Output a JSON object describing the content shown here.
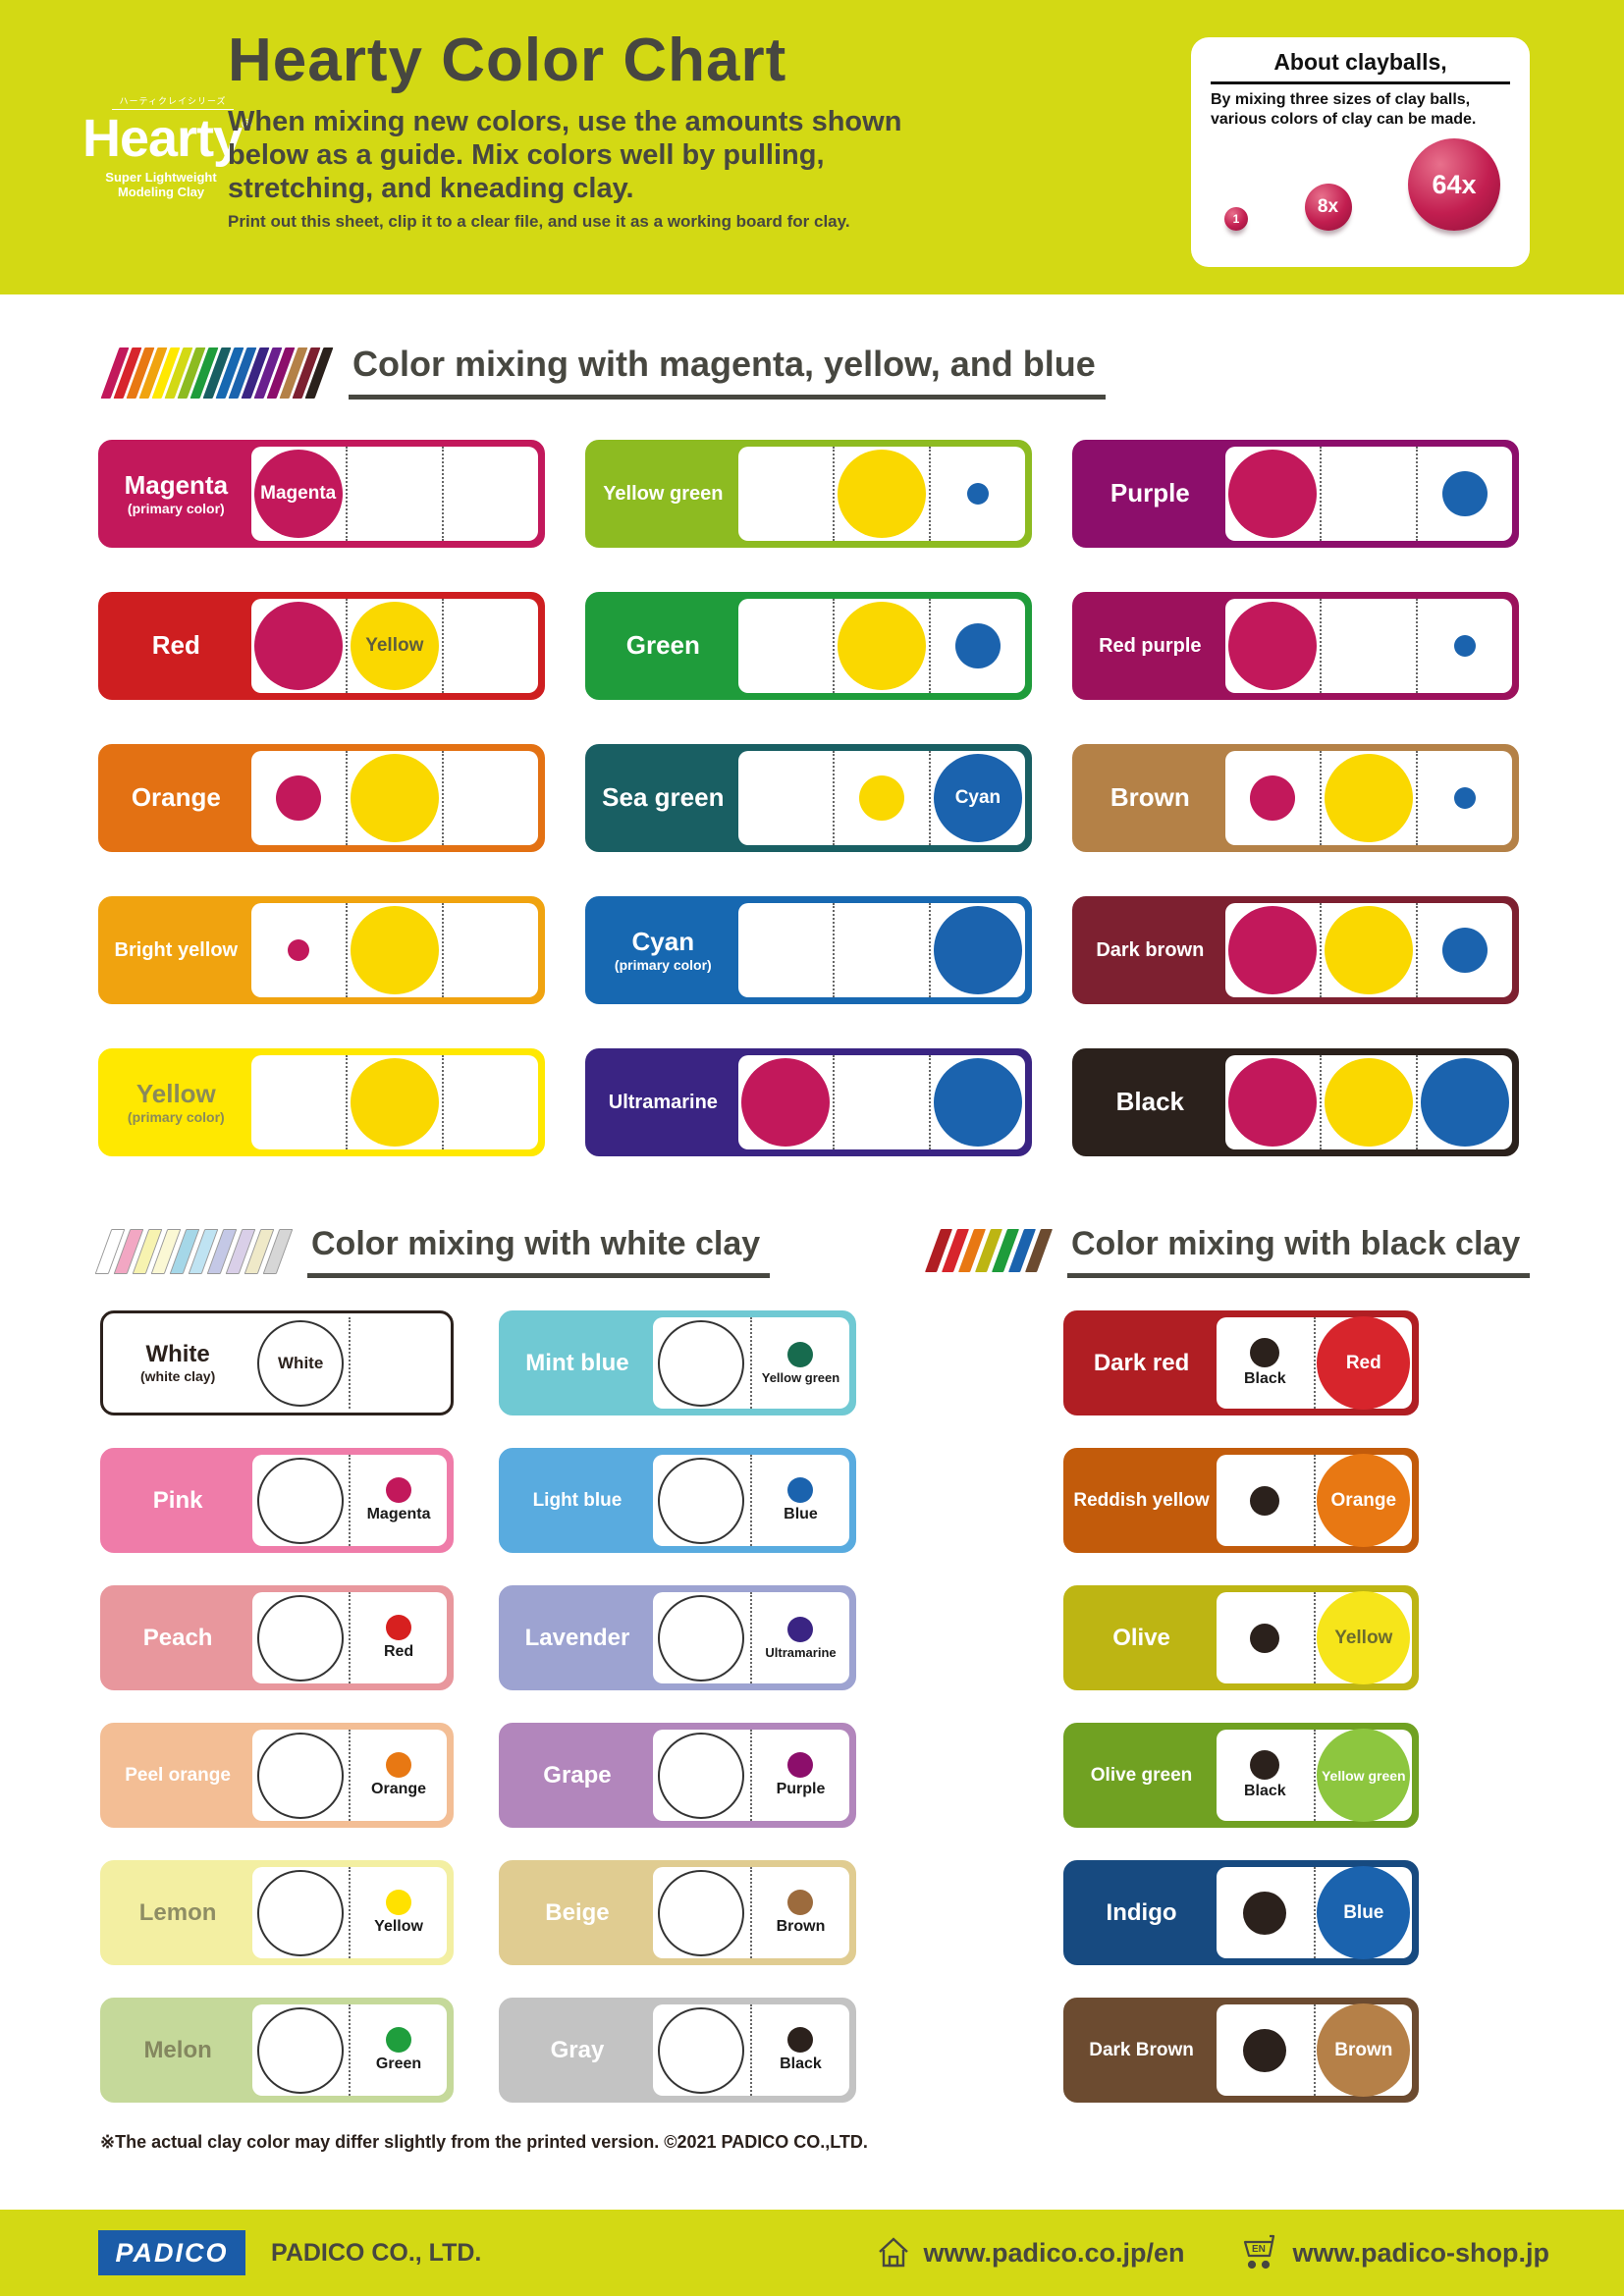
{
  "header": {
    "logo_jp": "ハーティクレイシリーズ",
    "logo_name": "Hearty",
    "logo_reg": "®",
    "logo_sub": "Super Lightweight Modeling Clay",
    "title": "Hearty Color Chart",
    "subtitle": "When mixing new colors, use the amounts shown below as a guide. Mix colors well by pulling, stretching, and kneading clay.",
    "note": "Print out this sheet, clip it to a clear file, and use it as a working board for clay.",
    "about": {
      "title": "About clayballs,",
      "body": "By mixing three sizes of clay balls, various colors of clay can be made.",
      "balls": [
        "1",
        "8x",
        "64x"
      ],
      "ball_color": "#C21E50"
    }
  },
  "sections": [
    {
      "id": "primary",
      "title": "Color mixing with magenta, yellow, and blue",
      "stripes": [
        "#C2185B",
        "#D7252C",
        "#E87813",
        "#F0A30F",
        "#FFE800",
        "#D3D914",
        "#8DBB21",
        "#1F9C3B",
        "#195F63",
        "#1768B1",
        "#1B63AE",
        "#3A2483",
        "#6A1F8E",
        "#8C0E6B",
        "#B48147",
        "#7D2030",
        "#2B211C"
      ],
      "mix_colors": {
        "magenta": "#C2185B",
        "yellow": "#FAD800",
        "blue": "#1B63AE"
      },
      "cards": [
        {
          "name": "Magenta",
          "sub": "(primary color)",
          "bg": "#C2185B",
          "cells": [
            {
              "size": "L",
              "color": "magenta",
              "label": "Magenta",
              "label_color": "#ffffff"
            },
            null,
            null
          ]
        },
        {
          "name": "Yellow green",
          "bg": "#8DBB21",
          "cells": [
            null,
            {
              "size": "L",
              "color": "yellow"
            },
            {
              "size": "S",
              "color": "blue"
            }
          ]
        },
        {
          "name": "Purple",
          "bg": "#8C0E6B",
          "cells": [
            {
              "size": "L",
              "color": "magenta"
            },
            null,
            {
              "size": "M",
              "color": "blue"
            }
          ]
        },
        {
          "name": "Red",
          "bg": "#CE1E20",
          "cells": [
            {
              "size": "L",
              "color": "magenta"
            },
            {
              "size": "L",
              "color": "yellow",
              "label": "Yellow",
              "label_color": "#5F5E3E"
            },
            null
          ]
        },
        {
          "name": "Green",
          "bg": "#1F9C3B",
          "cells": [
            null,
            {
              "size": "L",
              "color": "yellow"
            },
            {
              "size": "M",
              "color": "blue"
            }
          ]
        },
        {
          "name": "Red purple",
          "bg": "#9C115C",
          "cells": [
            {
              "size": "L",
              "color": "magenta"
            },
            null,
            {
              "size": "S",
              "color": "blue"
            }
          ]
        },
        {
          "name": "Orange",
          "bg": "#E37113",
          "cells": [
            {
              "size": "M",
              "color": "magenta"
            },
            {
              "size": "L",
              "color": "yellow"
            },
            null
          ]
        },
        {
          "name": "Sea green",
          "bg": "#195F63",
          "cells": [
            null,
            {
              "size": "M",
              "color": "yellow"
            },
            {
              "size": "L",
              "color": "blue",
              "label": "Cyan",
              "label_color": "#ffffff"
            }
          ]
        },
        {
          "name": "Brown",
          "bg": "#B48147",
          "cells": [
            {
              "size": "M",
              "color": "magenta"
            },
            {
              "size": "L",
              "color": "yellow"
            },
            {
              "size": "S",
              "color": "blue"
            }
          ]
        },
        {
          "name": "Bright yellow",
          "bg": "#F0A30F",
          "cells": [
            {
              "size": "S",
              "color": "magenta"
            },
            {
              "size": "L",
              "color": "yellow"
            },
            null
          ]
        },
        {
          "name": "Cyan",
          "sub": "(primary color)",
          "bg": "#1768B1",
          "cells": [
            null,
            null,
            {
              "size": "L",
              "color": "blue"
            }
          ]
        },
        {
          "name": "Dark brown",
          "bg": "#7D2030",
          "cells": [
            {
              "size": "L",
              "color": "magenta"
            },
            {
              "size": "L",
              "color": "yellow"
            },
            {
              "size": "M",
              "color": "blue"
            }
          ]
        },
        {
          "name": "Yellow",
          "sub": "(primary color)",
          "bg": "#FFE800",
          "text": "#8A8A5A",
          "cells": [
            null,
            {
              "size": "L",
              "color": "yellow"
            },
            null
          ]
        },
        {
          "name": "Ultramarine",
          "bg": "#3A2483",
          "cells": [
            {
              "size": "L",
              "color": "magenta"
            },
            null,
            {
              "size": "L",
              "color": "blue"
            }
          ]
        },
        {
          "name": "Black",
          "bg": "#2B211C",
          "cells": [
            {
              "size": "L",
              "color": "magenta"
            },
            {
              "size": "L",
              "color": "yellow"
            },
            {
              "size": "L",
              "color": "blue"
            }
          ]
        }
      ]
    },
    {
      "id": "white",
      "title": "Color mixing with white clay",
      "stripes": [
        "#FFFFFF",
        "#F2A7C3",
        "#F7F3B0",
        "#FBF8D4",
        "#A5D7E8",
        "#BFE3F2",
        "#C4C8E6",
        "#D9CFE8",
        "#EFE9C8",
        "#D6D6D6"
      ],
      "cards": [
        {
          "name": "White",
          "sub": "(white clay)",
          "bg": "#FFFFFF",
          "text": "#2B211C",
          "frame": "#2B211C",
          "clay_label": "White",
          "dot": null
        },
        {
          "name": "Mint blue",
          "bg": "#70C9D3",
          "dot": {
            "color": "#176B4E",
            "label": "Yellow green"
          }
        },
        {
          "name": "Pink",
          "bg": "#EF7CA9",
          "dot": {
            "color": "#C2185B",
            "label": "Magenta"
          }
        },
        {
          "name": "Light blue",
          "bg": "#59ABDF",
          "dot": {
            "color": "#1B63AE",
            "label": "Blue"
          }
        },
        {
          "name": "Peach",
          "bg": "#E8979D",
          "dot": {
            "color": "#D7201F",
            "label": "Red"
          }
        },
        {
          "name": "Lavender",
          "bg": "#9DA3D1",
          "dot": {
            "color": "#3A2483",
            "label": "Ultramarine"
          }
        },
        {
          "name": "Peel orange",
          "bg": "#F3BE95",
          "dot": {
            "color": "#E87813",
            "label": "Orange"
          }
        },
        {
          "name": "Grape",
          "bg": "#B286BC",
          "dot": {
            "color": "#8C0E6B",
            "label": "Purple"
          }
        },
        {
          "name": "Lemon",
          "bg": "#F3EFA2",
          "text": "#8E8D64",
          "dot": {
            "color": "#FFE100",
            "label": "Yellow"
          }
        },
        {
          "name": "Beige",
          "bg": "#E0CC91",
          "dot": {
            "color": "#9C6B3D",
            "label": "Brown"
          }
        },
        {
          "name": "Melon",
          "bg": "#C5D99A",
          "text": "#84875F",
          "dot": {
            "color": "#1F9E3D",
            "label": "Green"
          }
        },
        {
          "name": "Gray",
          "bg": "#C3C3C3",
          "dot": {
            "color": "#2B211C",
            "label": "Black"
          }
        }
      ]
    },
    {
      "id": "black",
      "title": "Color mixing with black clay",
      "stripes": [
        "#B01E23",
        "#D7252C",
        "#E87813",
        "#BDB513",
        "#1F9C3B",
        "#1B63AE",
        "#6C4B30"
      ],
      "black_dot_color": "#2B211C",
      "cards": [
        {
          "name": "Dark red",
          "bg": "#B01E23",
          "dot_size": "S",
          "dot_label": "Black",
          "mix": {
            "color": "#D7252C",
            "label": "Red",
            "text": "#ffffff"
          }
        },
        {
          "name": "Reddish yellow",
          "bg": "#C25B0B",
          "dot_size": "S",
          "dot_label": null,
          "mix": {
            "color": "#E87813",
            "label": "Orange",
            "text": "#ffffff"
          }
        },
        {
          "name": "Olive",
          "bg": "#BDB513",
          "dot_size": "S",
          "dot_label": null,
          "mix": {
            "color": "#F6E51A",
            "label": "Yellow",
            "text": "#6B6B2F"
          }
        },
        {
          "name": "Olive green",
          "bg": "#70A122",
          "dot_size": "S",
          "dot_label": "Black",
          "mix": {
            "color": "#8DC63F",
            "label": "Yellow green",
            "text": "#ffffff"
          }
        },
        {
          "name": "Indigo",
          "bg": "#174A80",
          "dot_size": "M",
          "dot_label": null,
          "mix": {
            "color": "#1B63AE",
            "label": "Blue",
            "text": "#ffffff"
          }
        },
        {
          "name": "Dark Brown",
          "bg": "#6C4B30",
          "dot_size": "M",
          "dot_label": null,
          "mix": {
            "color": "#B58048",
            "label": "Brown",
            "text": "#ffffff"
          }
        }
      ]
    }
  ],
  "footnote": "※The actual clay color may differ slightly from the printed version.  ©2021 PADICO CO.,LTD.",
  "footer": {
    "logo": "PADICO",
    "company": "PADICO CO., LTD.",
    "site1": "www.padico.co.jp/en",
    "cart_en": "EN",
    "site2": "www.padico-shop.jp"
  }
}
